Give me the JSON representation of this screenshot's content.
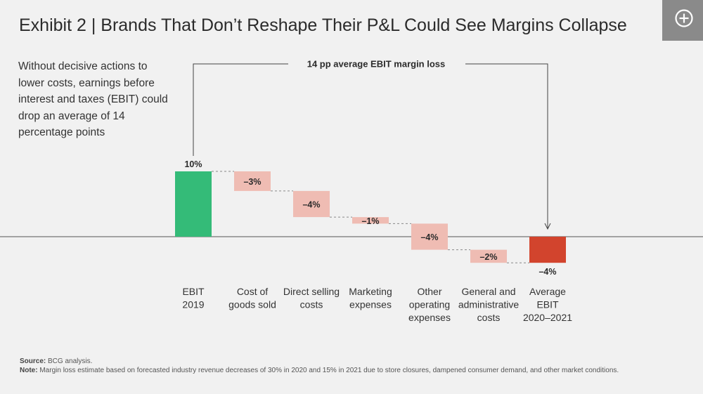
{
  "title": "Exhibit 2 | Brands That Don’t Reshape Their P&L Could See Margins Collapse",
  "description": "Without decisive actions to lower costs, earnings before interest and taxes (EBIT) could drop an average of 14 percentage points",
  "annotation": "14 pp average EBIT margin loss",
  "source": {
    "label": "Source:",
    "text": "BCG analysis."
  },
  "note": {
    "label": "Note:",
    "text": "Margin loss estimate based on forecasted industry revenue decreases of 30% in 2020 and 15% in 2021 due to store closures, dampened consumer demand, and other market conditions."
  },
  "colors": {
    "positive": "#34bb78",
    "negative_step": "#efbcb3",
    "final": "#d2442d",
    "axis": "#555555",
    "connector": "#888888"
  },
  "icons": {
    "expand": "plus-circle-icon"
  },
  "chart_data": {
    "type": "bar",
    "subtype": "waterfall",
    "categories": [
      "EBIT\n2019",
      "Cost of\ngoods sold",
      "Direct selling\ncosts",
      "Marketing\nexpenses",
      "Other\noperating\nexpenses",
      "General and\nadministrative\ncosts",
      "Average\nEBIT\n2020–2021"
    ],
    "values": [
      10,
      -3,
      -4,
      -1,
      -4,
      -2,
      -4
    ],
    "labels": [
      "10%",
      "–3%",
      "–4%",
      "–1%",
      "–4%",
      "–2%",
      "–4%"
    ],
    "kinds": [
      "total",
      "delta",
      "delta",
      "delta",
      "delta",
      "delta",
      "total"
    ],
    "ylim": [
      -4,
      10
    ]
  }
}
